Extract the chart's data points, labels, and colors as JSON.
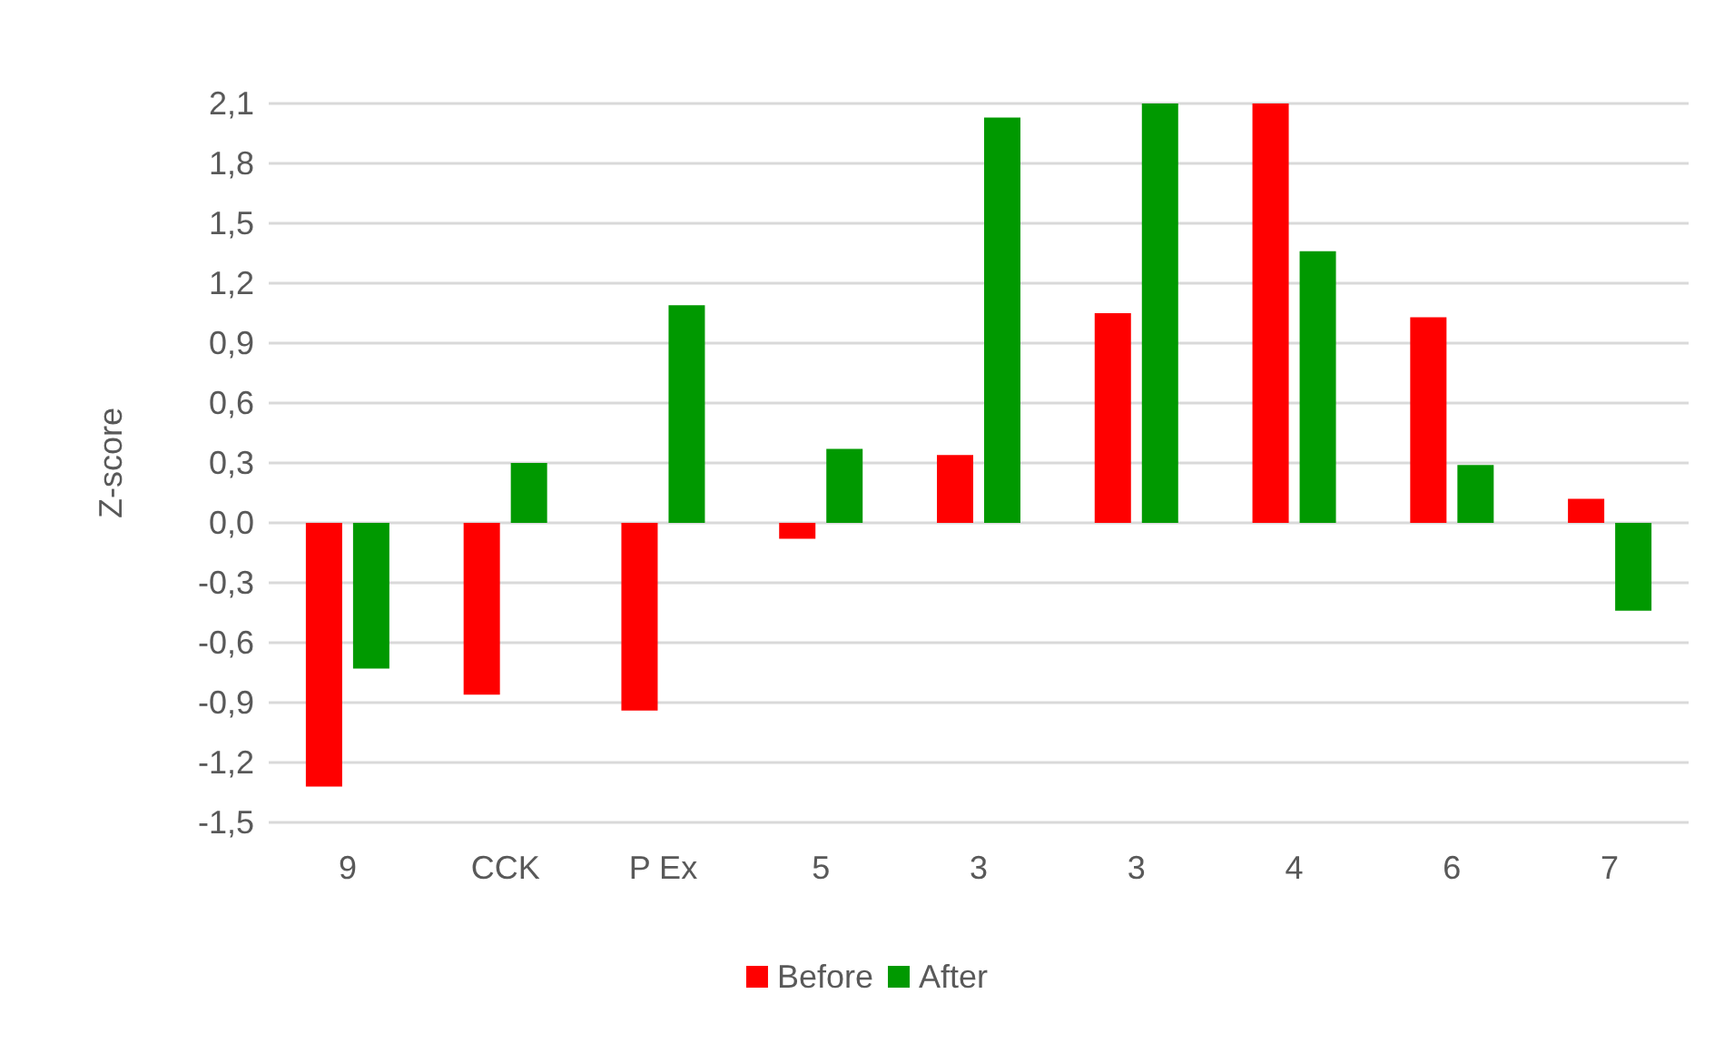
{
  "chart_data": {
    "type": "bar",
    "ylabel": "Z-score",
    "categories": [
      "9",
      "CCK",
      "P Ex",
      "5",
      "3",
      "3",
      "4",
      "6",
      "7"
    ],
    "series": [
      {
        "name": "Before",
        "color": "#ff0000",
        "values": [
          -1.32,
          -0.86,
          -0.94,
          -0.08,
          0.34,
          1.05,
          2.1,
          1.03,
          0.12
        ]
      },
      {
        "name": "After",
        "color": "#009900",
        "values": [
          -0.73,
          0.3,
          1.09,
          0.37,
          2.03,
          2.1,
          1.36,
          0.29,
          -0.44
        ]
      }
    ],
    "ylim": [
      -1.5,
      2.1
    ],
    "yticks": [
      {
        "value": -1.5,
        "label": "-1,5"
      },
      {
        "value": -1.2,
        "label": "-1,2"
      },
      {
        "value": -0.9,
        "label": "-0,9"
      },
      {
        "value": -0.6,
        "label": "-0,6"
      },
      {
        "value": -0.3,
        "label": "-0,3"
      },
      {
        "value": 0,
        "label": "0,0"
      },
      {
        "value": 0.3,
        "label": "0,3"
      },
      {
        "value": 0.6,
        "label": "0,6"
      },
      {
        "value": 0.9,
        "label": "0,9"
      },
      {
        "value": 1.2,
        "label": "1,2"
      },
      {
        "value": 1.5,
        "label": "1,5"
      },
      {
        "value": 1.8,
        "label": "1,8"
      },
      {
        "value": 2.1,
        "label": "2,1"
      }
    ],
    "grid": true,
    "legend": "bottom"
  }
}
